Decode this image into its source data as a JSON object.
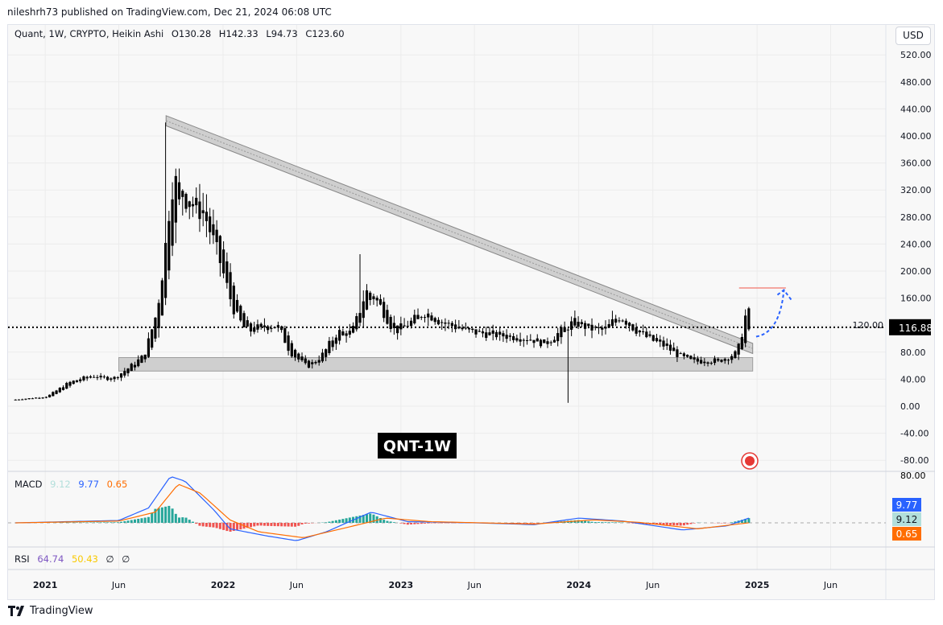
{
  "publish_line": "nileshrh73 published on TradingView.com, Dec 21, 2024 06:08 UTC",
  "legend": {
    "symbol": "Quant, 1W, CRYPTO, Heikin Ashi",
    "open": "O130.28",
    "high": "H142.33",
    "low": "L94.73",
    "close": "C123.60"
  },
  "currency_button": "USD",
  "watermark_label": "QNT-1W",
  "last_price": "116.88",
  "macd": {
    "label": "MACD",
    "hist": "9.12",
    "macd": "9.77",
    "signal": "0.65",
    "colors": {
      "hist": "#b2dfdb",
      "macd": "#2962ff",
      "signal": "#ff6d00"
    },
    "axis_label": "80.00"
  },
  "rsi": {
    "label": "RSI",
    "value": "64.74",
    "ma": "50.43",
    "na1": "∅",
    "na2": "∅",
    "colors": {
      "value": "#7e57c2",
      "ma": "#fdd835"
    }
  },
  "footer": {
    "brand": "TradingView"
  },
  "chart_data": {
    "type": "candlestick",
    "style": "Heikin Ashi",
    "candle_color": "#000000",
    "y_ticks": [
      -80,
      -40,
      0,
      40,
      80,
      120,
      160,
      200,
      240,
      280,
      320,
      360,
      400,
      440,
      480,
      520
    ],
    "ylim": [
      -100,
      540
    ],
    "x_ticks": [
      {
        "label": "2021",
        "date": "2021-01-01"
      },
      {
        "label": "Jun",
        "date": "2021-06-01"
      },
      {
        "label": "2022",
        "date": "2022-01-01"
      },
      {
        "label": "Jun",
        "date": "2022-06-01"
      },
      {
        "label": "2023",
        "date": "2023-01-01"
      },
      {
        "label": "Jun",
        "date": "2023-06-01"
      },
      {
        "label": "2024",
        "date": "2024-01-01"
      },
      {
        "label": "Jun",
        "date": "2024-06-01"
      },
      {
        "label": "2025",
        "date": "2025-01-01"
      },
      {
        "label": "Jun",
        "date": "2025-06-01"
      }
    ],
    "close_keyframes": [
      [
        "2020-11-01",
        10
      ],
      [
        "2021-01-01",
        14
      ],
      [
        "2021-02-15",
        35
      ],
      [
        "2021-04-01",
        45
      ],
      [
        "2021-05-15",
        40
      ],
      [
        "2021-06-15",
        55
      ],
      [
        "2021-07-20",
        75
      ],
      [
        "2021-08-15",
        140
      ],
      [
        "2021-09-01",
        230
      ],
      [
        "2021-09-15",
        340
      ],
      [
        "2021-10-15",
        305
      ],
      [
        "2021-11-20",
        285
      ],
      [
        "2021-12-20",
        220
      ],
      [
        "2022-01-20",
        140
      ],
      [
        "2022-02-15",
        110
      ],
      [
        "2022-03-20",
        118
      ],
      [
        "2022-04-20",
        120
      ],
      [
        "2022-05-15",
        80
      ],
      [
        "2022-06-20",
        58
      ],
      [
        "2022-07-20",
        75
      ],
      [
        "2022-08-20",
        110
      ],
      [
        "2022-09-20",
        108
      ],
      [
        "2022-10-20",
        175
      ],
      [
        "2022-11-15",
        150
      ],
      [
        "2022-12-15",
        110
      ],
      [
        "2023-01-20",
        125
      ],
      [
        "2023-02-15",
        140
      ],
      [
        "2023-03-20",
        125
      ],
      [
        "2023-05-20",
        110
      ],
      [
        "2023-07-20",
        105
      ],
      [
        "2023-09-20",
        100
      ],
      [
        "2023-10-20",
        92
      ],
      [
        "2023-11-20",
        110
      ],
      [
        "2023-12-20",
        125
      ],
      [
        "2024-01-20",
        115
      ],
      [
        "2024-02-20",
        112
      ],
      [
        "2024-03-20",
        135
      ],
      [
        "2024-04-20",
        115
      ],
      [
        "2024-05-20",
        100
      ],
      [
        "2024-06-20",
        90
      ],
      [
        "2024-07-20",
        75
      ],
      [
        "2024-08-20",
        66
      ],
      [
        "2024-10-15",
        68
      ],
      [
        "2024-11-20",
        80
      ],
      [
        "2024-12-07",
        145
      ],
      [
        "2024-12-21",
        123.6
      ]
    ],
    "spikes": [
      [
        "2021-09-06",
        420
      ],
      [
        "2022-10-10",
        225
      ],
      [
        "2023-12-11",
        5
      ]
    ],
    "annotations": {
      "descending_channel": {
        "start": [
          "2021-09-06",
          430,
          415
        ],
        "end": [
          "2024-12-23",
          93,
          78
        ],
        "color": "#9e9e9e"
      },
      "support_zone": {
        "start": "2021-06-01",
        "end": "2024-12-23",
        "low": 52,
        "high": 72
      },
      "target_line": {
        "start": "2024-11-25",
        "end": "2025-03-01",
        "price": 175,
        "color": "#f28b82"
      },
      "projection_arrow": {
        "from": [
          "2024-12-30",
          103
        ],
        "to": [
          "2025-02-25",
          172
        ],
        "color": "#2962ff"
      },
      "last_price_line": 116.88
    },
    "macd_keyframes": {
      "macd": [
        [
          "2020-11-01",
          0
        ],
        [
          "2021-06-01",
          4
        ],
        [
          "2021-08-01",
          25
        ],
        [
          "2021-09-15",
          78
        ],
        [
          "2021-10-15",
          70
        ],
        [
          "2021-12-15",
          20
        ],
        [
          "2022-01-15",
          -10
        ],
        [
          "2022-04-01",
          -22
        ],
        [
          "2022-06-01",
          -30
        ],
        [
          "2022-08-01",
          -15
        ],
        [
          "2022-11-01",
          18
        ],
        [
          "2023-01-15",
          2
        ],
        [
          "2023-06-01",
          0
        ],
        [
          "2023-10-01",
          -3
        ],
        [
          "2024-01-01",
          8
        ],
        [
          "2024-04-01",
          3
        ],
        [
          "2024-08-01",
          -12
        ],
        [
          "2024-11-01",
          -5
        ],
        [
          "2024-12-21",
          9.77
        ]
      ],
      "signal": [
        [
          "2020-11-01",
          0
        ],
        [
          "2021-06-01",
          3
        ],
        [
          "2021-08-15",
          18
        ],
        [
          "2021-10-01",
          65
        ],
        [
          "2021-11-15",
          50
        ],
        [
          "2022-01-15",
          5
        ],
        [
          "2022-03-15",
          -15
        ],
        [
          "2022-06-15",
          -25
        ],
        [
          "2022-09-01",
          -10
        ],
        [
          "2022-12-01",
          8
        ],
        [
          "2023-03-01",
          2
        ],
        [
          "2023-10-01",
          -2
        ],
        [
          "2024-02-01",
          5
        ],
        [
          "2024-05-01",
          1
        ],
        [
          "2024-09-01",
          -10
        ],
        [
          "2024-12-21",
          0.65
        ]
      ]
    }
  }
}
